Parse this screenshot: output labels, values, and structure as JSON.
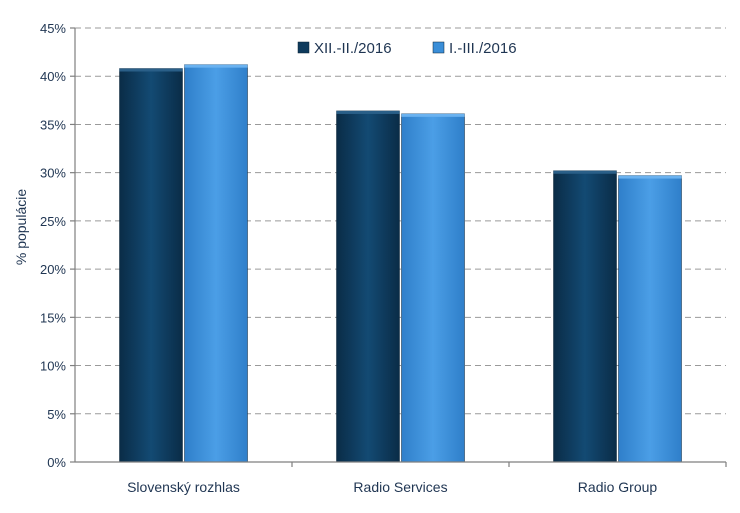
{
  "chart_data": {
    "type": "bar",
    "title": "",
    "xlabel": "",
    "ylabel": "% populácie",
    "categories": [
      "Slovenský rozhlas",
      "Radio Services",
      "Radio Group"
    ],
    "series": [
      {
        "name": "XII.-II./2016",
        "values": [
          40.8,
          36.4,
          30.2
        ],
        "color": "#0e3a5c"
      },
      {
        "name": "I.-III./2016",
        "values": [
          41.2,
          36.1,
          29.7
        ],
        "color": "#3a8ed8"
      }
    ],
    "ylim": [
      0,
      45
    ],
    "yticks": [
      0,
      5,
      10,
      15,
      20,
      25,
      30,
      35,
      40,
      45
    ],
    "ytick_labels": [
      "0%",
      "5%",
      "10%",
      "15%",
      "20%",
      "25%",
      "30%",
      "35%",
      "40%",
      "45%"
    ],
    "grid": true,
    "legend_position": "top-center"
  }
}
